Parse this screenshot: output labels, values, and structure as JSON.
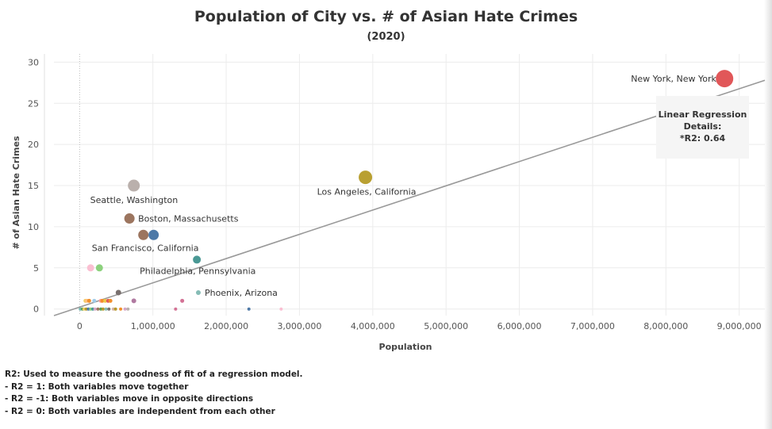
{
  "chart_data": {
    "type": "scatter",
    "title": "Population of City vs. # of Asian Hate Crimes",
    "subtitle": "(2020)",
    "xlabel": "Population",
    "ylabel": "# of Asian Hate Crimes",
    "xlim": [
      -350000,
      9350000
    ],
    "ylim": [
      -0.8,
      31
    ],
    "x_ticks": [
      0,
      1000000,
      2000000,
      3000000,
      4000000,
      5000000,
      6000000,
      7000000,
      8000000,
      9000000
    ],
    "x_tick_labels": [
      "0",
      "1,000,000",
      "2,000,000",
      "3,000,000",
      "4,000,000",
      "5,000,000",
      "6,000,000",
      "7,000,000",
      "8,000,000",
      "9,000,000"
    ],
    "y_ticks": [
      0,
      5,
      10,
      15,
      20,
      25,
      30
    ],
    "y_tick_labels": [
      "0",
      "5",
      "10",
      "15",
      "20",
      "25",
      "30"
    ],
    "grid": true,
    "regression_line": {
      "x": [
        -350000,
        9350000
      ],
      "y": [
        -0.8,
        27.8
      ]
    },
    "points": [
      {
        "label": "New York, New York",
        "x": 8800000,
        "y": 28,
        "size": 22,
        "color": "#e15759"
      },
      {
        "label": "Los Angeles, California",
        "x": 3900000,
        "y": 16,
        "size": 17,
        "color": "#b9a032"
      },
      {
        "label": "Seattle, Washington",
        "x": 740000,
        "y": 15,
        "size": 15,
        "color": "#bab0ac"
      },
      {
        "label": "Boston, Massachusetts",
        "x": 680000,
        "y": 11,
        "size": 13,
        "color": "#9c755f"
      },
      {
        "label": "San Francisco, California",
        "x": 870000,
        "y": 9,
        "size": 13,
        "color": "#9c755f"
      },
      {
        "label": "",
        "x": 1010000,
        "y": 9,
        "size": 13,
        "color": "#4e79a7"
      },
      {
        "label": "Philadelphia, Pennsylvania",
        "x": 1600000,
        "y": 6,
        "size": 10,
        "color": "#499894"
      },
      {
        "label": "Phoenix, Arizona",
        "x": 1620000,
        "y": 2,
        "size": 6,
        "color": "#86bcb6"
      },
      {
        "label": "",
        "x": 150000,
        "y": 5,
        "size": 9,
        "color": "#fabfd2"
      },
      {
        "label": "",
        "x": 270000,
        "y": 5,
        "size": 9,
        "color": "#8cd17d"
      },
      {
        "label": "",
        "x": 530000,
        "y": 2,
        "size": 7,
        "color": "#79706e"
      },
      {
        "label": "",
        "x": 740000,
        "y": 1,
        "size": 6,
        "color": "#b07aa1"
      },
      {
        "label": "",
        "x": 1400000,
        "y": 1,
        "size": 5,
        "color": "#d37295"
      },
      {
        "label": "",
        "x": 80000,
        "y": 1,
        "size": 5,
        "color": "#f1ce63"
      },
      {
        "label": "",
        "x": 100000,
        "y": 1,
        "size": 5,
        "color": "#ffbe7d"
      },
      {
        "label": "",
        "x": 130000,
        "y": 1,
        "size": 5,
        "color": "#f28e2b"
      },
      {
        "label": "",
        "x": 200000,
        "y": 1,
        "size": 5,
        "color": "#a0cbe8"
      },
      {
        "label": "",
        "x": 290000,
        "y": 1,
        "size": 5,
        "color": "#ff9d9a"
      },
      {
        "label": "",
        "x": 310000,
        "y": 1,
        "size": 5,
        "color": "#f28e2b"
      },
      {
        "label": "",
        "x": 350000,
        "y": 1,
        "size": 5,
        "color": "#edc948"
      },
      {
        "label": "",
        "x": 390000,
        "y": 1,
        "size": 5,
        "color": "#e15759"
      },
      {
        "label": "",
        "x": 420000,
        "y": 1,
        "size": 5,
        "color": "#f28e2b"
      },
      {
        "label": "",
        "x": 10000,
        "y": 0,
        "size": 4,
        "color": "#76b7b2"
      },
      {
        "label": "",
        "x": 40000,
        "y": 0,
        "size": 4,
        "color": "#59a14f"
      },
      {
        "label": "",
        "x": 60000,
        "y": 0,
        "size": 4,
        "color": "#f1ce63"
      },
      {
        "label": "",
        "x": 90000,
        "y": 0,
        "size": 4,
        "color": "#b6992d"
      },
      {
        "label": "",
        "x": 120000,
        "y": 0,
        "size": 4,
        "color": "#4e79a7"
      },
      {
        "label": "",
        "x": 150000,
        "y": 0,
        "size": 4,
        "color": "#8cd17d"
      },
      {
        "label": "",
        "x": 180000,
        "y": 0,
        "size": 4,
        "color": "#499894"
      },
      {
        "label": "",
        "x": 210000,
        "y": 0,
        "size": 4,
        "color": "#d4a6c8"
      },
      {
        "label": "",
        "x": 250000,
        "y": 0,
        "size": 4,
        "color": "#9d7660"
      },
      {
        "label": "",
        "x": 290000,
        "y": 0,
        "size": 4,
        "color": "#59a14f"
      },
      {
        "label": "",
        "x": 320000,
        "y": 0,
        "size": 4,
        "color": "#b6992d"
      },
      {
        "label": "",
        "x": 360000,
        "y": 0,
        "size": 4,
        "color": "#86bcb6"
      },
      {
        "label": "",
        "x": 400000,
        "y": 0,
        "size": 4,
        "color": "#79706e"
      },
      {
        "label": "",
        "x": 460000,
        "y": 0,
        "size": 4,
        "color": "#d7b5a6"
      },
      {
        "label": "",
        "x": 490000,
        "y": 0,
        "size": 4,
        "color": "#b6992d"
      },
      {
        "label": "",
        "x": 560000,
        "y": 0,
        "size": 4,
        "color": "#f28e2b"
      },
      {
        "label": "",
        "x": 620000,
        "y": 0,
        "size": 4,
        "color": "#d4a6c8"
      },
      {
        "label": "",
        "x": 660000,
        "y": 0,
        "size": 4,
        "color": "#bab0ac"
      },
      {
        "label": "",
        "x": 1310000,
        "y": 0,
        "size": 4,
        "color": "#d37295"
      },
      {
        "label": "",
        "x": 2310000,
        "y": 0,
        "size": 4,
        "color": "#4e79a7"
      },
      {
        "label": "",
        "x": 2750000,
        "y": 0,
        "size": 4,
        "color": "#fabfd2"
      }
    ]
  },
  "regression_details": {
    "heading": "Linear Regression",
    "heading2": "Details:",
    "r2": "*R2: 0.64"
  },
  "footnote": {
    "line1": "R2: Used to measure the goodness of fit of a regression model.",
    "line2": "- R2 = 1: Both variables move together",
    "line3": "- R2 = -1: Both variables move in opposite directions",
    "line4": "- R2 = 0: Both variables are independent from each other"
  }
}
